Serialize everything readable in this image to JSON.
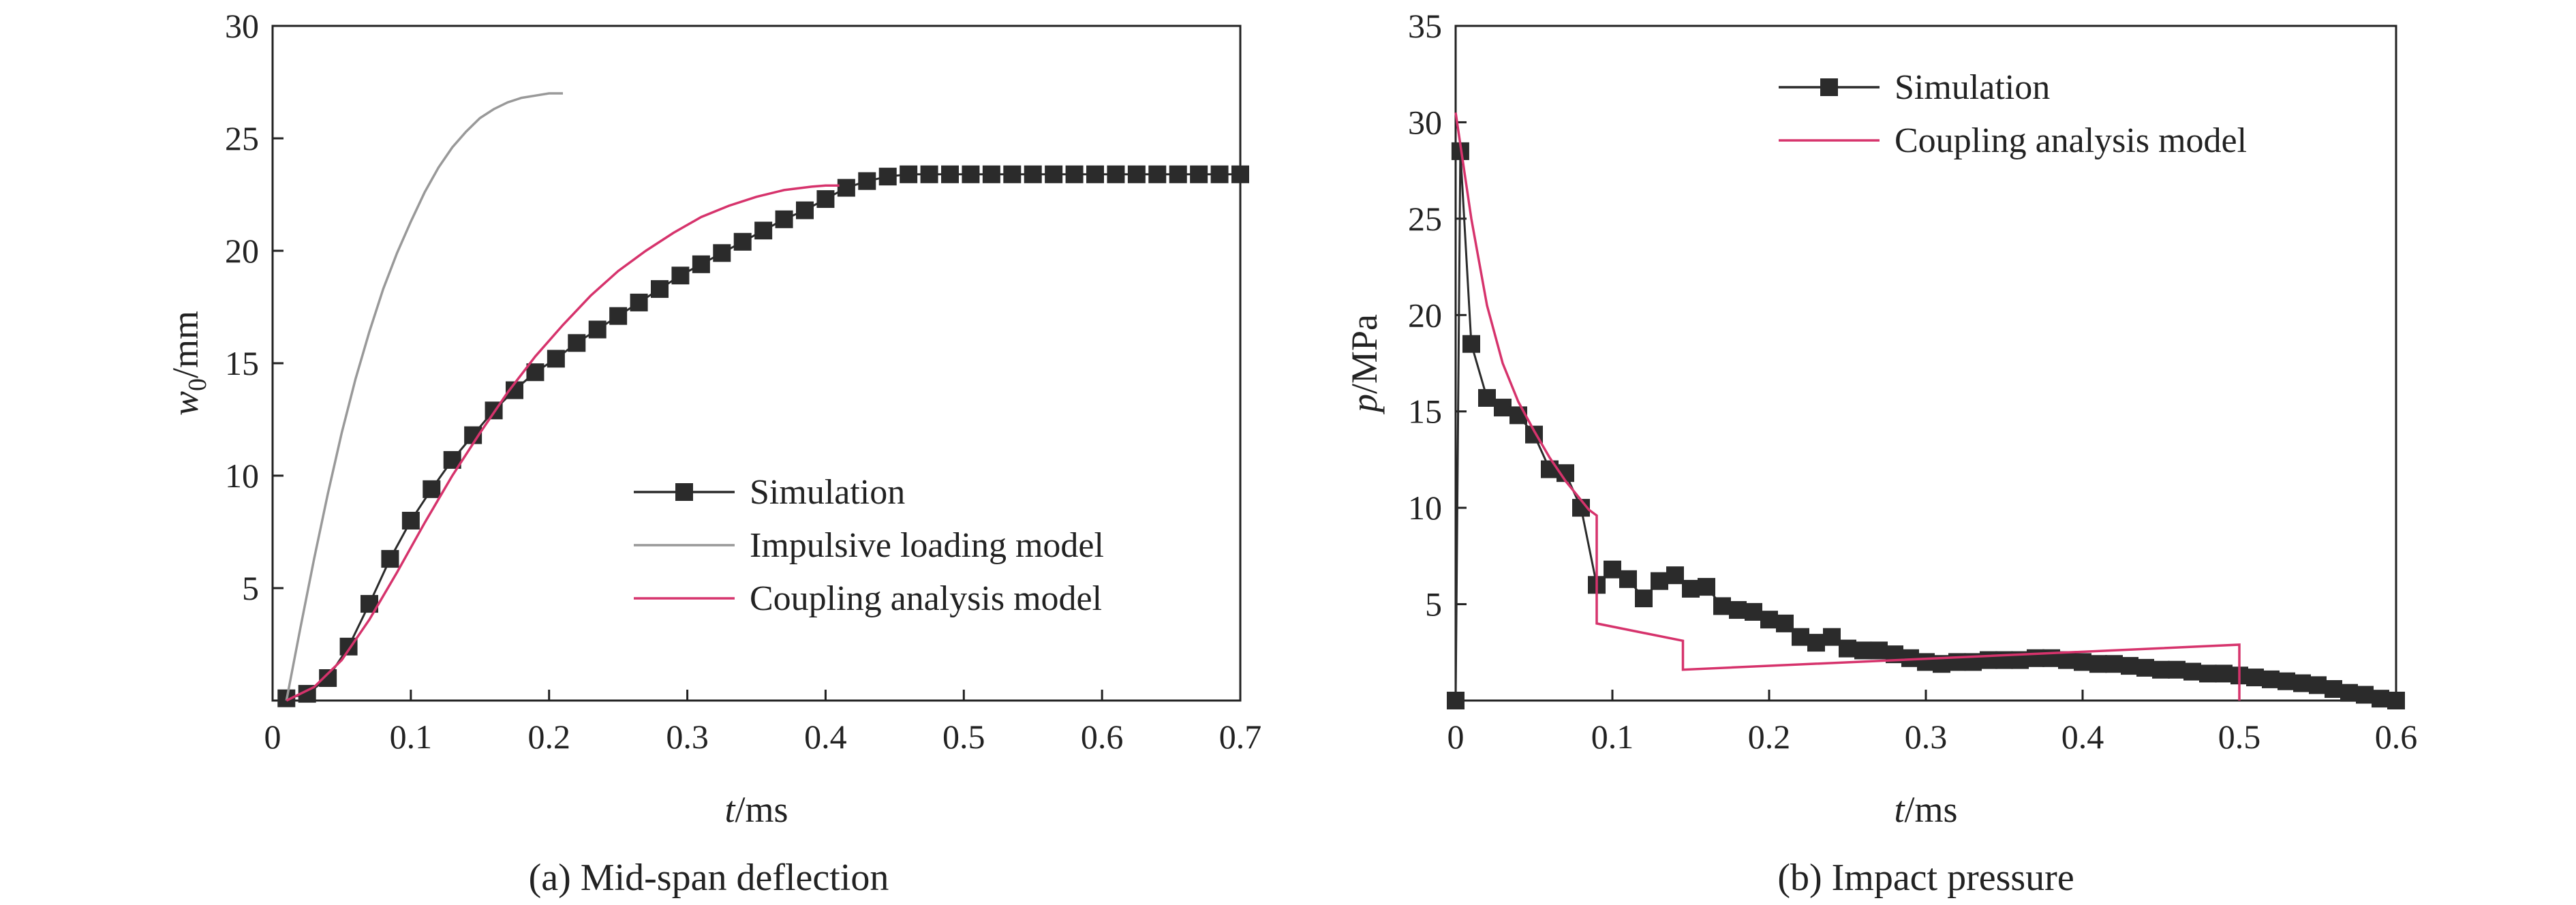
{
  "chart_data": [
    {
      "type": "line",
      "caption": "(a) Mid-span deflection",
      "xlabel": "t/ms",
      "xlabel_italic": "t",
      "xlabel_rest": "/ms",
      "ylabel_italic": "w",
      "ylabel_sub": "0",
      "ylabel_rest": "/mm",
      "xlim": [
        0,
        0.7
      ],
      "ylim": [
        0,
        30
      ],
      "x_ticks": [
        0,
        0.1,
        0.2,
        0.3,
        0.4,
        0.5,
        0.6,
        0.7
      ],
      "x_tick_labels": [
        "0",
        "0.1",
        "0.2",
        "0.3",
        "0.4",
        "0.5",
        "0.6",
        "0.7"
      ],
      "y_ticks": [
        5,
        10,
        15,
        20,
        25,
        30
      ],
      "y_tick_labels": [
        "5",
        "10",
        "15",
        "20",
        "25",
        "30"
      ],
      "legend_position": "lower-right",
      "series": [
        {
          "name": "Simulation",
          "color": "#2b2b2b",
          "marker": "square",
          "points": [
            [
              0.01,
              0.1
            ],
            [
              0.025,
              0.3
            ],
            [
              0.04,
              1.0
            ],
            [
              0.055,
              2.4
            ],
            [
              0.07,
              4.3
            ],
            [
              0.085,
              6.3
            ],
            [
              0.1,
              8.0
            ],
            [
              0.115,
              9.4
            ],
            [
              0.13,
              10.7
            ],
            [
              0.145,
              11.8
            ],
            [
              0.16,
              12.9
            ],
            [
              0.175,
              13.8
            ],
            [
              0.19,
              14.6
            ],
            [
              0.205,
              15.2
            ],
            [
              0.22,
              15.9
            ],
            [
              0.235,
              16.5
            ],
            [
              0.25,
              17.1
            ],
            [
              0.265,
              17.7
            ],
            [
              0.28,
              18.3
            ],
            [
              0.295,
              18.9
            ],
            [
              0.31,
              19.4
            ],
            [
              0.325,
              19.9
            ],
            [
              0.34,
              20.4
            ],
            [
              0.355,
              20.9
            ],
            [
              0.37,
              21.4
            ],
            [
              0.385,
              21.8
            ],
            [
              0.4,
              22.3
            ],
            [
              0.415,
              22.8
            ],
            [
              0.43,
              23.1
            ],
            [
              0.445,
              23.3
            ],
            [
              0.46,
              23.4
            ],
            [
              0.475,
              23.4
            ],
            [
              0.49,
              23.4
            ],
            [
              0.505,
              23.4
            ],
            [
              0.52,
              23.4
            ],
            [
              0.535,
              23.4
            ],
            [
              0.55,
              23.4
            ],
            [
              0.565,
              23.4
            ],
            [
              0.58,
              23.4
            ],
            [
              0.595,
              23.4
            ],
            [
              0.61,
              23.4
            ],
            [
              0.625,
              23.4
            ],
            [
              0.64,
              23.4
            ],
            [
              0.655,
              23.4
            ],
            [
              0.67,
              23.4
            ],
            [
              0.685,
              23.4
            ],
            [
              0.7,
              23.4
            ]
          ]
        },
        {
          "name": "Impulsive loading model",
          "color": "#999999",
          "marker": "none",
          "points": [
            [
              0.01,
              0
            ],
            [
              0.02,
              3.2
            ],
            [
              0.03,
              6.3
            ],
            [
              0.04,
              9.2
            ],
            [
              0.05,
              11.9
            ],
            [
              0.06,
              14.3
            ],
            [
              0.07,
              16.4
            ],
            [
              0.08,
              18.3
            ],
            [
              0.09,
              19.9
            ],
            [
              0.1,
              21.3
            ],
            [
              0.11,
              22.6
            ],
            [
              0.12,
              23.7
            ],
            [
              0.13,
              24.6
            ],
            [
              0.14,
              25.3
            ],
            [
              0.15,
              25.9
            ],
            [
              0.16,
              26.3
            ],
            [
              0.17,
              26.6
            ],
            [
              0.18,
              26.8
            ],
            [
              0.19,
              26.9
            ],
            [
              0.2,
              27.0
            ],
            [
              0.21,
              27.0
            ]
          ]
        },
        {
          "name": "Coupling analysis model",
          "color": "#d6336c",
          "marker": "none",
          "points": [
            [
              0.01,
              0
            ],
            [
              0.03,
              0.6
            ],
            [
              0.05,
              1.8
            ],
            [
              0.07,
              3.6
            ],
            [
              0.09,
              5.7
            ],
            [
              0.11,
              7.9
            ],
            [
              0.13,
              10.0
            ],
            [
              0.15,
              11.9
            ],
            [
              0.17,
              13.7
            ],
            [
              0.19,
              15.3
            ],
            [
              0.21,
              16.7
            ],
            [
              0.23,
              18.0
            ],
            [
              0.25,
              19.1
            ],
            [
              0.27,
              20.0
            ],
            [
              0.29,
              20.8
            ],
            [
              0.31,
              21.5
            ],
            [
              0.33,
              22.0
            ],
            [
              0.35,
              22.4
            ],
            [
              0.37,
              22.7
            ],
            [
              0.39,
              22.85
            ],
            [
              0.4,
              22.9
            ],
            [
              0.41,
              22.9
            ]
          ]
        }
      ]
    },
    {
      "type": "line",
      "caption": "(b) Impact pressure",
      "xlabel": "t/ms",
      "xlabel_italic": "t",
      "xlabel_rest": "/ms",
      "ylabel_italic": "p",
      "ylabel_sub": "",
      "ylabel_rest": "/MPa",
      "xlim": [
        0,
        0.6
      ],
      "ylim": [
        0,
        35
      ],
      "x_ticks": [
        0,
        0.1,
        0.2,
        0.3,
        0.4,
        0.5,
        0.6
      ],
      "x_tick_labels": [
        "0",
        "0.1",
        "0.2",
        "0.3",
        "0.4",
        "0.5",
        "0.6"
      ],
      "y_ticks": [
        5,
        10,
        15,
        20,
        25,
        30,
        35
      ],
      "y_tick_labels": [
        "5",
        "10",
        "15",
        "20",
        "25",
        "30",
        "35"
      ],
      "legend_position": "top-right",
      "series": [
        {
          "name": "Simulation",
          "color": "#2b2b2b",
          "marker": "square",
          "points": [
            [
              0.0,
              0
            ],
            [
              0.003,
              28.5
            ],
            [
              0.01,
              18.5
            ],
            [
              0.02,
              15.7
            ],
            [
              0.03,
              15.2
            ],
            [
              0.04,
              14.8
            ],
            [
              0.05,
              13.8
            ],
            [
              0.06,
              12.0
            ],
            [
              0.07,
              11.8
            ],
            [
              0.08,
              10.0
            ],
            [
              0.09,
              6.0
            ],
            [
              0.1,
              6.8
            ],
            [
              0.11,
              6.3
            ],
            [
              0.12,
              5.3
            ],
            [
              0.13,
              6.2
            ],
            [
              0.14,
              6.5
            ],
            [
              0.15,
              5.8
            ],
            [
              0.16,
              5.9
            ],
            [
              0.17,
              4.9
            ],
            [
              0.18,
              4.7
            ],
            [
              0.19,
              4.6
            ],
            [
              0.2,
              4.2
            ],
            [
              0.21,
              4.0
            ],
            [
              0.22,
              3.3
            ],
            [
              0.23,
              3.0
            ],
            [
              0.24,
              3.3
            ],
            [
              0.25,
              2.7
            ],
            [
              0.26,
              2.6
            ],
            [
              0.27,
              2.6
            ],
            [
              0.28,
              2.4
            ],
            [
              0.29,
              2.2
            ],
            [
              0.3,
              2.0
            ],
            [
              0.31,
              1.9
            ],
            [
              0.32,
              2.0
            ],
            [
              0.33,
              2.0
            ],
            [
              0.34,
              2.1
            ],
            [
              0.35,
              2.1
            ],
            [
              0.36,
              2.1
            ],
            [
              0.37,
              2.2
            ],
            [
              0.38,
              2.2
            ],
            [
              0.39,
              2.1
            ],
            [
              0.4,
              2.0
            ],
            [
              0.41,
              1.9
            ],
            [
              0.42,
              1.9
            ],
            [
              0.43,
              1.8
            ],
            [
              0.44,
              1.7
            ],
            [
              0.45,
              1.6
            ],
            [
              0.46,
              1.6
            ],
            [
              0.47,
              1.5
            ],
            [
              0.48,
              1.4
            ],
            [
              0.49,
              1.4
            ],
            [
              0.5,
              1.3
            ],
            [
              0.51,
              1.2
            ],
            [
              0.52,
              1.1
            ],
            [
              0.53,
              1.0
            ],
            [
              0.54,
              0.9
            ],
            [
              0.55,
              0.8
            ],
            [
              0.56,
              0.6
            ],
            [
              0.57,
              0.4
            ],
            [
              0.58,
              0.3
            ],
            [
              0.59,
              0.1
            ],
            [
              0.6,
              0.0
            ]
          ]
        },
        {
          "name": "Coupling analysis model",
          "color": "#d6336c",
          "marker": "none",
          "points": [
            [
              0.0,
              30.5
            ],
            [
              0.01,
              25.0
            ],
            [
              0.02,
              20.5
            ],
            [
              0.03,
              17.5
            ],
            [
              0.04,
              15.5
            ],
            [
              0.05,
              14.0
            ],
            [
              0.06,
              12.6
            ],
            [
              0.07,
              11.4
            ],
            [
              0.08,
              10.4
            ],
            [
              0.085,
              9.9
            ],
            [
              0.09,
              9.6
            ],
            [
              0.09,
              4.0
            ],
            [
              0.145,
              3.1
            ],
            [
              0.145,
              1.6
            ],
            [
              0.5,
              2.9
            ],
            [
              0.5,
              0.0
            ]
          ]
        }
      ]
    }
  ]
}
